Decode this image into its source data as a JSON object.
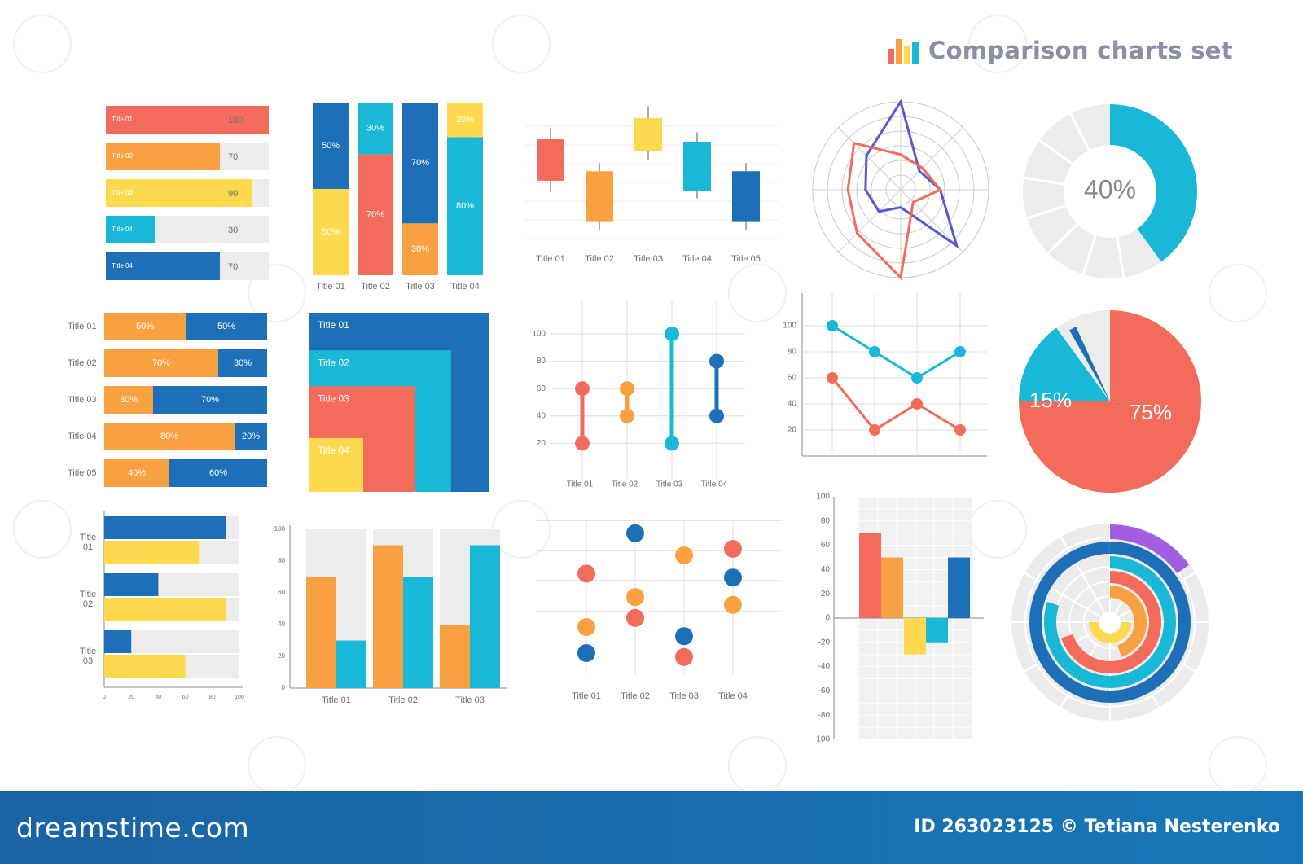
{
  "header": {
    "title": "Comparison charts set",
    "icon": "bar-chart-icon"
  },
  "footer": {
    "brand": "dreamstime.com",
    "credit": "ID 263023125 © Tetiana Nesterenko"
  },
  "colors": {
    "red": "#f26b5b",
    "orange": "#f9a040",
    "yellow": "#fdd94e",
    "cyan": "#19b8d6",
    "blue": "#1d6fb8",
    "purple": "#a35de0",
    "gray": "#ececec",
    "indigo": "#5a57d1",
    "text": "#6d6d6d"
  },
  "chart_data": [
    {
      "id": "c1",
      "type": "bar",
      "orientation": "horizontal",
      "categories": [
        "Title 01",
        "Title 02",
        "Title 03",
        "Title 04",
        "Title 04"
      ],
      "values": [
        100,
        70,
        90,
        30,
        70
      ],
      "ylim": [
        0,
        100
      ]
    },
    {
      "id": "c2",
      "type": "bar",
      "stacked": true,
      "categories": [
        "Title 01",
        "Title 02",
        "Title 03",
        "Title 04"
      ],
      "series": [
        {
          "values": [
            50,
            70,
            30,
            80
          ]
        },
        {
          "values": [
            50,
            30,
            70,
            20
          ]
        }
      ],
      "series_colors": [
        [
          "yellow",
          "blue"
        ],
        [
          "red",
          "cyan"
        ],
        [
          "orange",
          "blue"
        ],
        [
          "cyan",
          "yellow"
        ]
      ],
      "labels": [
        [
          "50%",
          "50%"
        ],
        [
          "70%",
          "30%"
        ],
        [
          "30%",
          "70%"
        ],
        [
          "80%",
          "20%"
        ]
      ]
    },
    {
      "id": "c3",
      "type": "candlestick",
      "categories": [
        "Title 01",
        "Title 02",
        "Title 03",
        "Title 04",
        "Title 05"
      ],
      "candles": [
        {
          "high": 92,
          "open": 82,
          "close": 47,
          "low": 38,
          "color": "red"
        },
        {
          "high": 62,
          "open": 55,
          "close": 12,
          "low": 5,
          "color": "orange"
        },
        {
          "high": 110,
          "open": 100,
          "close": 72,
          "low": 65,
          "color": "yellow"
        },
        {
          "high": 88,
          "open": 80,
          "close": 38,
          "low": 32,
          "color": "cyan"
        },
        {
          "high": 62,
          "open": 55,
          "close": 12,
          "low": 5,
          "color": "blue"
        }
      ]
    },
    {
      "id": "c4",
      "type": "radar",
      "axes": 8,
      "ylim": [
        0,
        100
      ],
      "series": [
        {
          "values": [
            100,
            30,
            45,
            90,
            20,
            35,
            40,
            55
          ],
          "color": "indigo"
        },
        {
          "values": [
            40,
            35,
            45,
            20,
            100,
            70,
            60,
            75
          ],
          "color": "red"
        }
      ]
    },
    {
      "id": "c5",
      "type": "pie",
      "style": "donut",
      "center_label": "40%",
      "values": [
        40,
        60
      ],
      "colors": [
        "cyan",
        "gray"
      ]
    },
    {
      "id": "c6",
      "type": "bar",
      "stacked": true,
      "orientation": "horizontal",
      "categories": [
        "Title 01",
        "Title 02",
        "Title 03",
        "Title 04",
        "Title 05"
      ],
      "series": [
        {
          "values": [
            50,
            70,
            30,
            80,
            40
          ]
        },
        {
          "values": [
            50,
            30,
            70,
            20,
            60
          ]
        }
      ],
      "labels": [
        [
          "50%",
          "50%"
        ],
        [
          "70%",
          "30%"
        ],
        [
          "30%",
          "70%"
        ],
        [
          "80%",
          "20%"
        ],
        [
          "40%",
          "60%"
        ]
      ]
    },
    {
      "id": "c7",
      "type": "treemap",
      "items": [
        {
          "label": "Title 01",
          "value": 100,
          "color": "blue"
        },
        {
          "label": "Title 02",
          "value": 79,
          "color": "cyan"
        },
        {
          "label": "Title 03",
          "value": 59,
          "color": "red"
        },
        {
          "label": "Title 04",
          "value": 30,
          "color": "yellow"
        }
      ]
    },
    {
      "id": "c8",
      "type": "range",
      "categories": [
        "Title 01",
        "Title 02",
        "Title 03",
        "Title 04"
      ],
      "ranges": [
        [
          20,
          60
        ],
        [
          40,
          60
        ],
        [
          20,
          100
        ],
        [
          40,
          80
        ]
      ],
      "colors": [
        "red",
        "orange",
        "cyan",
        "blue"
      ],
      "yticks": [
        20,
        40,
        60,
        80,
        100
      ],
      "ylim": [
        0,
        110
      ]
    },
    {
      "id": "c9",
      "type": "line",
      "yticks": [
        20,
        40,
        60,
        80,
        100
      ],
      "ylim": [
        0,
        110
      ],
      "series": [
        {
          "values": [
            100,
            80,
            60,
            80
          ],
          "color": "cyan"
        },
        {
          "values": [
            60,
            20,
            40,
            20
          ],
          "color": "red"
        }
      ]
    },
    {
      "id": "c10",
      "type": "pie",
      "values": [
        75,
        15,
        10
      ],
      "colors": [
        "red",
        "cyan",
        "gray"
      ],
      "labels": [
        "75%",
        "15%",
        ""
      ]
    },
    {
      "id": "c11",
      "type": "bar",
      "orientation": "horizontal",
      "categories": [
        "Title 01",
        "Title 02",
        "Title 03"
      ],
      "series": [
        {
          "values": [
            90,
            40,
            20
          ],
          "color": "blue"
        },
        {
          "values": [
            70,
            90,
            60
          ],
          "color": "yellow"
        }
      ],
      "xticks": [
        "0",
        "20",
        "40",
        "60",
        "80",
        "100"
      ],
      "ylim": [
        0,
        100
      ]
    },
    {
      "id": "c12",
      "type": "bar",
      "categories": [
        "Title 01",
        "Title 02",
        "Title 03"
      ],
      "series": [
        {
          "values": [
            70,
            90,
            40
          ],
          "color": "orange"
        },
        {
          "values": [
            30,
            70,
            90
          ],
          "color": "cyan"
        }
      ],
      "yticks": [
        "0",
        "20",
        "40",
        "60",
        "80",
        "100"
      ],
      "ylim": [
        0,
        100
      ]
    },
    {
      "id": "c13",
      "type": "scatter",
      "categories": [
        "Title 01",
        "Title 02",
        "Title 03",
        "Title 04"
      ],
      "points": [
        [
          [
            "red",
            66
          ],
          [
            "orange",
            25
          ],
          [
            "blue",
            5
          ]
        ],
        [
          [
            "blue",
            97
          ],
          [
            "orange",
            48
          ],
          [
            "red",
            32
          ]
        ],
        [
          [
            "orange",
            80
          ],
          [
            "blue",
            18
          ],
          [
            "red",
            2
          ]
        ],
        [
          [
            "red",
            85
          ],
          [
            "blue",
            63
          ],
          [
            "orange",
            42
          ]
        ]
      ]
    },
    {
      "id": "c14",
      "type": "bar",
      "yticks": [
        "100",
        "80",
        "60",
        "40",
        "20",
        "0",
        "-20",
        "-40",
        "-60",
        "-80",
        "-100"
      ],
      "ylim": [
        -100,
        100
      ],
      "values": [
        70,
        50,
        -30,
        -20,
        50
      ],
      "colors": [
        "red",
        "orange",
        "yellow",
        "cyan",
        "blue"
      ]
    },
    {
      "id": "c15",
      "type": "radial_bar",
      "values": [
        30,
        45,
        70,
        80,
        100,
        15
      ],
      "colors": [
        "yellow",
        "orange",
        "red",
        "cyan",
        "blue",
        "purple"
      ]
    }
  ]
}
